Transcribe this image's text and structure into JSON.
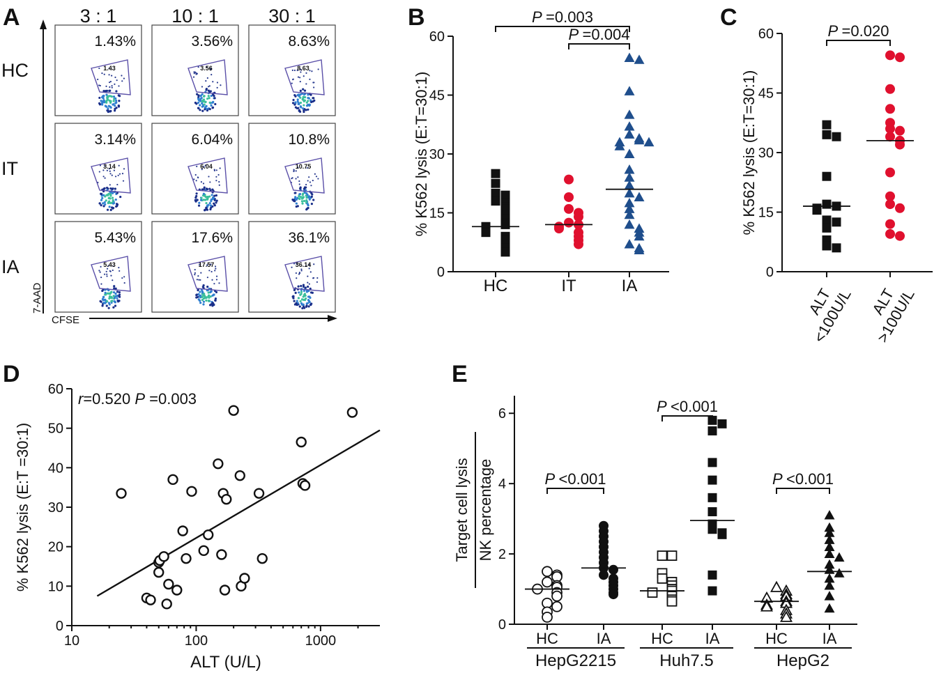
{
  "panels": [
    {
      "letter": "A"
    },
    {
      "letter": "B"
    },
    {
      "letter": "C"
    },
    {
      "letter": "D"
    },
    {
      "letter": "E"
    }
  ],
  "flow": {
    "ratios": [
      "3 : 1",
      "10 : 1",
      "30 : 1"
    ],
    "groups": [
      "HC",
      "IT",
      "IA"
    ],
    "percentages": [
      [
        "1.43%",
        "3.56%",
        "8.63%"
      ],
      [
        "3.14%",
        "6.04%",
        "10.8%"
      ],
      [
        "5.43%",
        "17.6%",
        "36.1%"
      ]
    ],
    "gate_values": [
      [
        "1.43",
        "3.56",
        "8.63"
      ],
      [
        "3.14",
        "6.04",
        "10.75"
      ],
      [
        "5.43",
        "17.57",
        "36.14"
      ]
    ],
    "xlabel": "CFSE",
    "ylabel": "7-AAD"
  },
  "chart_data": [
    {
      "id": "B",
      "type": "scatter",
      "ylabel": "% K562 lysis (E:T=30:1)",
      "ylim": [
        0,
        60
      ],
      "yticks": [
        0,
        15,
        30,
        45,
        60
      ],
      "categories": [
        "HC",
        "IT",
        "IA"
      ],
      "series": [
        {
          "color": "#111111",
          "marker": "square",
          "median": 11.5,
          "values": [
            25,
            22.5,
            20,
            19.5,
            18,
            17.5,
            16.5,
            16,
            15,
            14.5,
            13.5,
            12.5,
            12,
            11.5,
            11,
            10.5,
            10,
            9,
            8,
            7,
            6,
            5
          ]
        },
        {
          "color": "#e0102e",
          "marker": "circle",
          "median": 12,
          "values": [
            23.5,
            19,
            16,
            15,
            14,
            12.5,
            12,
            11.5,
            11,
            10,
            9,
            8,
            7
          ]
        },
        {
          "color": "#1f4e8c",
          "marker": "triangle",
          "median": 21,
          "values": [
            54.5,
            54,
            46,
            40,
            37,
            35,
            34,
            33.5,
            33,
            33,
            32,
            30,
            26,
            24,
            22,
            20,
            19,
            17.5,
            16,
            14.5,
            12,
            11,
            10,
            9,
            7,
            6,
            5.5
          ]
        }
      ],
      "annotations": [
        {
          "label": "P",
          "value": "=0.003",
          "from": "HC",
          "to": "IA"
        },
        {
          "label": "P",
          "value": "=0.004",
          "from": "IT",
          "to": "IA"
        }
      ]
    },
    {
      "id": "C",
      "type": "scatter",
      "ylabel": "% K562 lysis (E:T=30:1)",
      "ylim": [
        0,
        60
      ],
      "yticks": [
        0,
        15,
        30,
        45,
        60
      ],
      "categories": [
        "ALT\n<100U/L",
        "ALT\n>100U/L"
      ],
      "series": [
        {
          "color": "#111111",
          "marker": "square",
          "median": 16.5,
          "values": [
            37,
            34.5,
            34,
            24,
            17,
            16.5,
            16,
            15.5,
            13,
            12.5,
            11,
            8,
            6.5,
            6
          ]
        },
        {
          "color": "#e0102e",
          "marker": "circle",
          "median": 33,
          "values": [
            54.5,
            54,
            46,
            41,
            37.5,
            36,
            35.5,
            34,
            33,
            32,
            25,
            19,
            17,
            16,
            12,
            9.5,
            9
          ]
        }
      ],
      "annotations": [
        {
          "label": "P",
          "value": "=0.020",
          "from": 0,
          "to": 1
        }
      ]
    },
    {
      "id": "D",
      "type": "scatter",
      "xlabel": "ALT (U/L)",
      "ylabel": "% K562 lysis (E:T =30:1)",
      "xscale": "log",
      "xlim": [
        10,
        3000
      ],
      "xticks": [
        10,
        100,
        1000
      ],
      "ylim": [
        0,
        60
      ],
      "yticks": [
        0,
        10,
        20,
        30,
        40,
        50,
        60
      ],
      "stat_r": "r",
      "stat_r_value": "=0.520",
      "stat_p": "P",
      "stat_p_value": "=0.003",
      "points": [
        [
          25,
          33.5
        ],
        [
          40,
          7
        ],
        [
          43,
          6.5
        ],
        [
          50,
          16
        ],
        [
          50,
          13.5
        ],
        [
          51,
          16.5
        ],
        [
          55,
          17.5
        ],
        [
          58,
          5.5
        ],
        [
          60,
          10.5
        ],
        [
          65,
          37
        ],
        [
          70,
          9
        ],
        [
          78,
          24
        ],
        [
          83,
          17
        ],
        [
          92,
          34
        ],
        [
          115,
          19
        ],
        [
          125,
          23
        ],
        [
          150,
          41
        ],
        [
          160,
          18
        ],
        [
          165,
          33.5
        ],
        [
          170,
          9
        ],
        [
          175,
          32
        ],
        [
          200,
          54.5
        ],
        [
          225,
          38
        ],
        [
          230,
          10
        ],
        [
          245,
          12
        ],
        [
          320,
          33.5
        ],
        [
          340,
          17
        ],
        [
          700,
          46.5
        ],
        [
          720,
          36
        ],
        [
          750,
          35.5
        ],
        [
          1800,
          54
        ]
      ],
      "fit": [
        [
          16,
          7.5
        ],
        [
          3000,
          49.5
        ]
      ]
    },
    {
      "id": "E",
      "type": "scatter",
      "ylabel_line1": "Target cell lysis",
      "ylabel_line2": "NK percentage",
      "ylim": [
        0,
        6.5
      ],
      "yticks": [
        0,
        2,
        4,
        6
      ],
      "categories": [
        "HC",
        "IA",
        "HC",
        "IA",
        "HC",
        "IA"
      ],
      "group_labels": [
        "HepG2215",
        "Huh7.5",
        "HepG2"
      ],
      "series": [
        {
          "group": "HepG2215",
          "cat": "HC",
          "marker": "circle-open",
          "median": 1.0,
          "values": [
            1.5,
            1.4,
            1.35,
            1.2,
            1.1,
            1.05,
            1.0,
            0.9,
            0.8,
            0.6,
            0.5,
            0.35,
            0.2
          ]
        },
        {
          "group": "HepG2215",
          "cat": "IA",
          "marker": "circle",
          "median": 1.6,
          "values": [
            2.8,
            2.65,
            2.5,
            2.35,
            2.2,
            2.05,
            1.9,
            1.75,
            1.6,
            1.55,
            1.4,
            1.3,
            1.2,
            1.1,
            1.0,
            0.9,
            0.85
          ]
        },
        {
          "group": "Huh7.5",
          "cat": "HC",
          "marker": "square-open",
          "median": 0.95,
          "values": [
            1.95,
            1.95,
            1.45,
            1.3,
            1.2,
            1.1,
            1.0,
            0.95,
            0.9,
            0.8,
            0.7,
            0.65
          ]
        },
        {
          "group": "Huh7.5",
          "cat": "IA",
          "marker": "square",
          "median": 2.95,
          "values": [
            5.8,
            5.7,
            5.5,
            4.6,
            4.1,
            3.6,
            3.2,
            2.85,
            2.7,
            2.6,
            2.55,
            1.4,
            0.95
          ]
        },
        {
          "group": "HepG2",
          "cat": "HC",
          "marker": "triangle-open",
          "median": 0.65,
          "values": [
            1.05,
            0.95,
            0.85,
            0.8,
            0.75,
            0.65,
            0.6,
            0.55,
            0.5,
            0.4,
            0.3,
            0.2
          ]
        },
        {
          "group": "HepG2",
          "cat": "IA",
          "marker": "triangle",
          "median": 1.5,
          "values": [
            3.1,
            2.75,
            2.6,
            2.4,
            2.2,
            2.0,
            1.9,
            1.7,
            1.55,
            1.45,
            1.3,
            1.1,
            0.8,
            0.45
          ]
        }
      ],
      "annotations": [
        {
          "label": "P",
          "value": "<0.001",
          "from": 0,
          "to": 1
        },
        {
          "label": "P",
          "value": "<0.001",
          "from": 2,
          "to": 3
        },
        {
          "label": "P",
          "value": "<0.001",
          "from": 4,
          "to": 5
        }
      ]
    }
  ]
}
